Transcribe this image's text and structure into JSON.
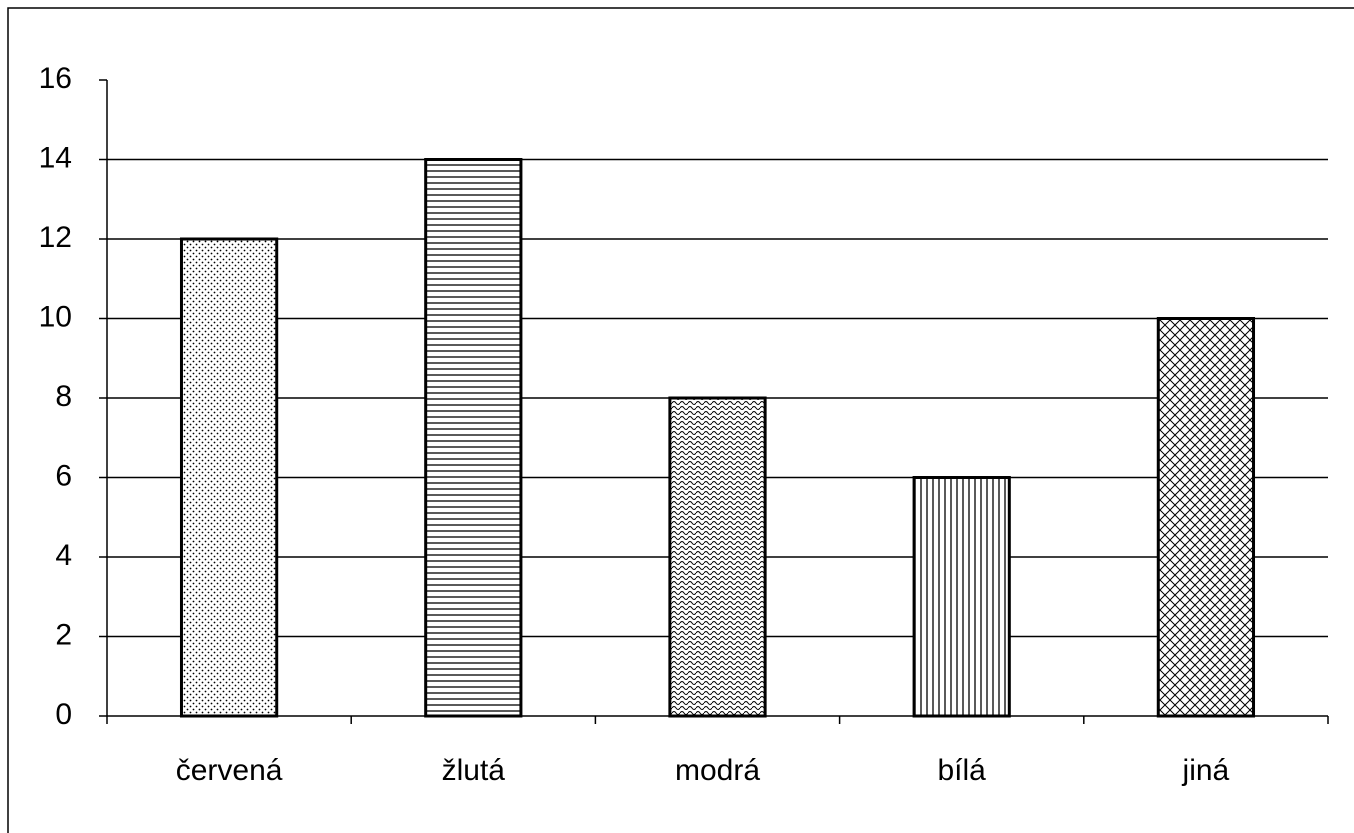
{
  "chart_data": {
    "type": "bar",
    "categories": [
      "červená",
      "žlutá",
      "modrá",
      "bílá",
      "jiná"
    ],
    "values": [
      12,
      14,
      8,
      6,
      10
    ],
    "color": "#000000",
    "patterns": [
      "dots",
      "horizontal",
      "wave",
      "vertical",
      "crosshatch"
    ],
    "ylim": [
      0,
      16
    ],
    "yticks": [
      0,
      2,
      4,
      6,
      8,
      10,
      12,
      14,
      16
    ],
    "grid": true
  }
}
